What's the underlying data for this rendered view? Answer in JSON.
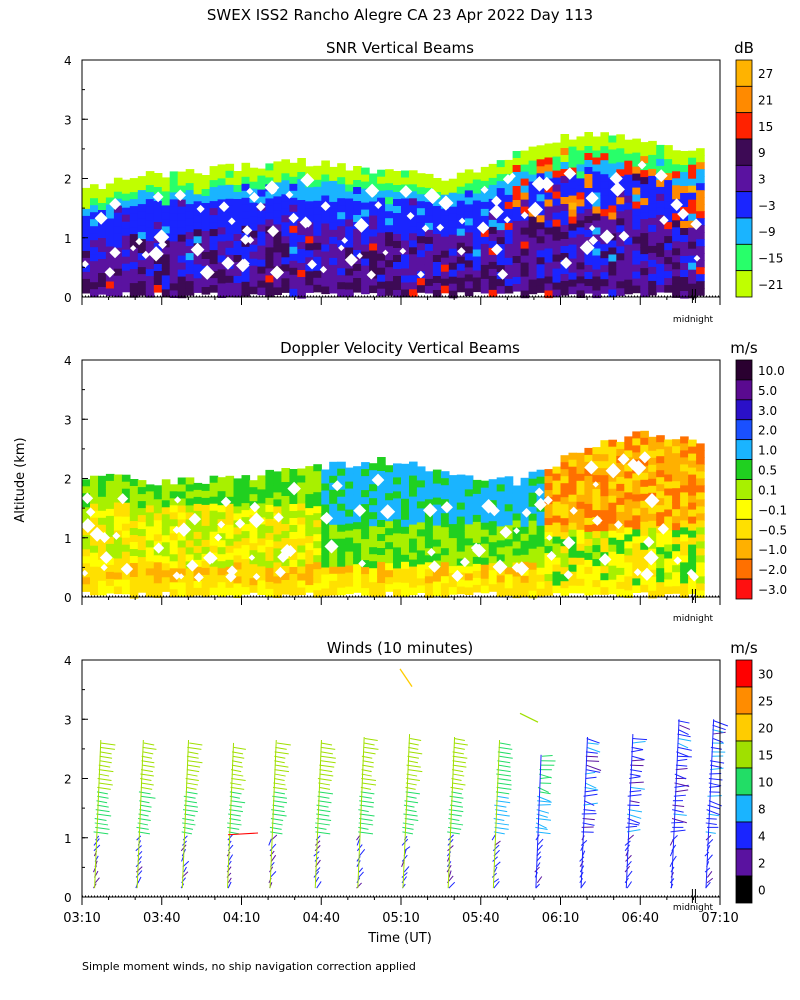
{
  "figure": {
    "title": "SWEX ISS2 Rancho Alegre CA  23 Apr 2022 Day 113",
    "ylabel": "Altitude (km)",
    "xlabel": "Time (UT)",
    "footnote": "Simple moment winds, no ship navigation correction applied",
    "midnight_label": "midnight",
    "xticks": [
      "03:10",
      "03:40",
      "04:10",
      "04:40",
      "05:10",
      "05:40",
      "06:10",
      "06:40",
      "07:10"
    ]
  },
  "chart_data": [
    {
      "id": "snr",
      "type": "heatmap",
      "title": "SNR Vertical Beams",
      "ylabel": "Altitude (km)",
      "ylim": [
        0,
        4
      ],
      "yticks": [
        "0",
        "1",
        "2",
        "3",
        "4"
      ],
      "xlim": [
        "03:10",
        "07:10"
      ],
      "colorbar": {
        "unit": "dB",
        "levels": [
          "27",
          "21",
          "15",
          "9",
          "3",
          "−3",
          "−9",
          "−15",
          "−21"
        ],
        "colors": [
          "#ffb300",
          "#ff8a00",
          "#ff2200",
          "#3d0a55",
          "#5a12a0",
          "#1a25ff",
          "#1ab4ff",
          "#28ff6a",
          "#c0ff00"
        ]
      },
      "top_profile_km": [
        [
          0,
          1.8
        ],
        [
          20,
          2.05
        ],
        [
          40,
          2.1
        ],
        [
          60,
          2.2
        ],
        [
          80,
          2.3
        ],
        [
          100,
          2.2
        ],
        [
          120,
          2.1
        ],
        [
          140,
          2.0
        ],
        [
          150,
          2.2
        ],
        [
          160,
          2.35
        ],
        [
          175,
          2.6
        ],
        [
          190,
          2.8
        ],
        [
          210,
          2.6
        ],
        [
          225,
          2.5
        ],
        [
          240,
          2.5
        ]
      ],
      "data_range_min": [
        0,
        240
      ]
    },
    {
      "id": "doppler",
      "type": "heatmap",
      "title": "Doppler Velocity Vertical Beams",
      "ylabel": "Altitude (km)",
      "ylim": [
        0,
        4
      ],
      "yticks": [
        "0",
        "1",
        "2",
        "3",
        "4"
      ],
      "xlim": [
        "03:10",
        "07:10"
      ],
      "colorbar": {
        "unit": "m/s",
        "levels": [
          "10.0",
          "5.0",
          "3.0",
          "2.0",
          "1.0",
          "0.5",
          "0.1",
          "−0.1",
          "−0.5",
          "−1.0",
          "−2.0",
          "−3.0"
        ],
        "colors": [
          "#2a0030",
          "#5a0a90",
          "#2a10c8",
          "#1a50ff",
          "#1ab4ff",
          "#20d020",
          "#a8f000",
          "#ffff00",
          "#ffe000",
          "#ffb000",
          "#ff7000",
          "#ff1010"
        ]
      },
      "top_profile_km": [
        [
          0,
          2.05
        ],
        [
          30,
          1.95
        ],
        [
          60,
          2.0
        ],
        [
          90,
          2.2
        ],
        [
          110,
          2.3
        ],
        [
          130,
          2.2
        ],
        [
          150,
          2.0
        ],
        [
          165,
          1.95
        ],
        [
          175,
          2.2
        ],
        [
          190,
          2.5
        ],
        [
          210,
          2.8
        ],
        [
          225,
          2.7
        ],
        [
          240,
          2.5
        ]
      ],
      "data_range_min": [
        0,
        240
      ]
    },
    {
      "id": "winds",
      "type": "wind_barbs",
      "title": "Winds (10 minutes)",
      "ylabel": "Altitude (km)",
      "ylim": [
        0,
        4
      ],
      "yticks": [
        "0",
        "1",
        "2",
        "3",
        "4"
      ],
      "xlim": [
        "03:10",
        "07:10"
      ],
      "profile_times_min": [
        7,
        23,
        40,
        57,
        73,
        90,
        106,
        123,
        140,
        157,
        173,
        190,
        207,
        224,
        237
      ],
      "profile_top_km": [
        2.65,
        2.65,
        2.65,
        2.6,
        2.65,
        2.65,
        2.7,
        2.75,
        2.7,
        2.65,
        2.4,
        2.7,
        2.75,
        3.0,
        3.0
      ],
      "colorbar": {
        "unit": "m/s",
        "levels": [
          "30",
          "25",
          "20",
          "15",
          "10",
          "8",
          "4",
          "2",
          "0"
        ],
        "colors": [
          "#ff0000",
          "#ff8c00",
          "#ffcc00",
          "#a0e000",
          "#22dd66",
          "#1ab4ff",
          "#1a25ff",
          "#5a12a0",
          "#000000"
        ]
      }
    }
  ]
}
